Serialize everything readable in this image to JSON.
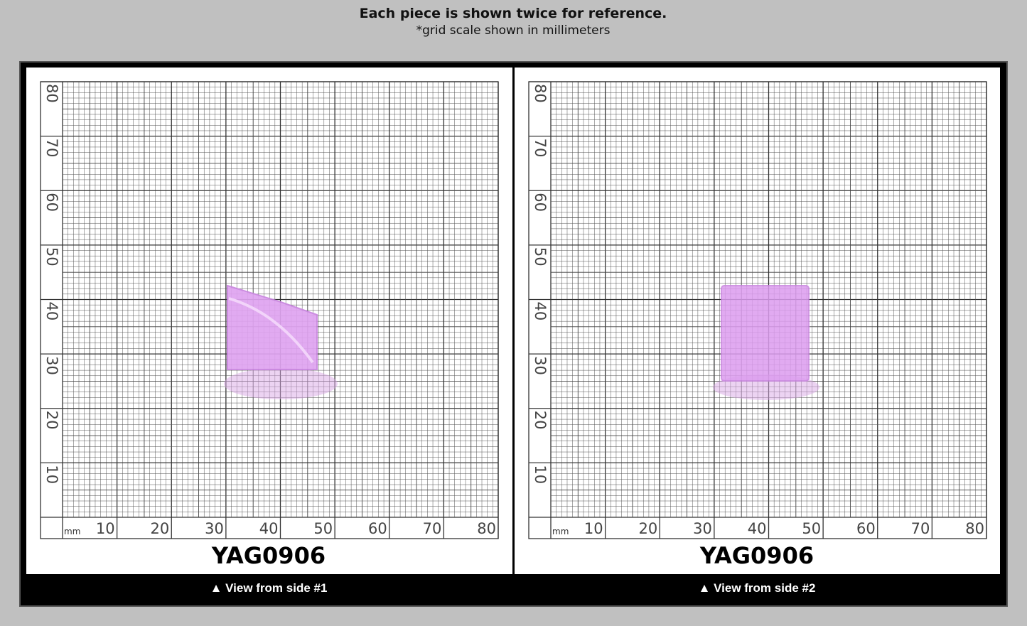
{
  "header": {
    "title": "Each piece is shown twice for reference.",
    "subtitle": "*grid scale shown in millimeters"
  },
  "panels": [
    {
      "label": "YAG0906",
      "caption": "▲ View from side #1",
      "unit": "mm",
      "x_labels": [
        10,
        20,
        30,
        40,
        50,
        60,
        70,
        80
      ],
      "y_labels": [
        10,
        20,
        30,
        40,
        50,
        60,
        70,
        80
      ]
    },
    {
      "label": "YAG0906",
      "caption": "▲ View from side #2",
      "unit": "mm",
      "x_labels": [
        10,
        20,
        30,
        40,
        50,
        60,
        70,
        80
      ],
      "y_labels": [
        10,
        20,
        30,
        40,
        50,
        60,
        70,
        80
      ]
    }
  ]
}
